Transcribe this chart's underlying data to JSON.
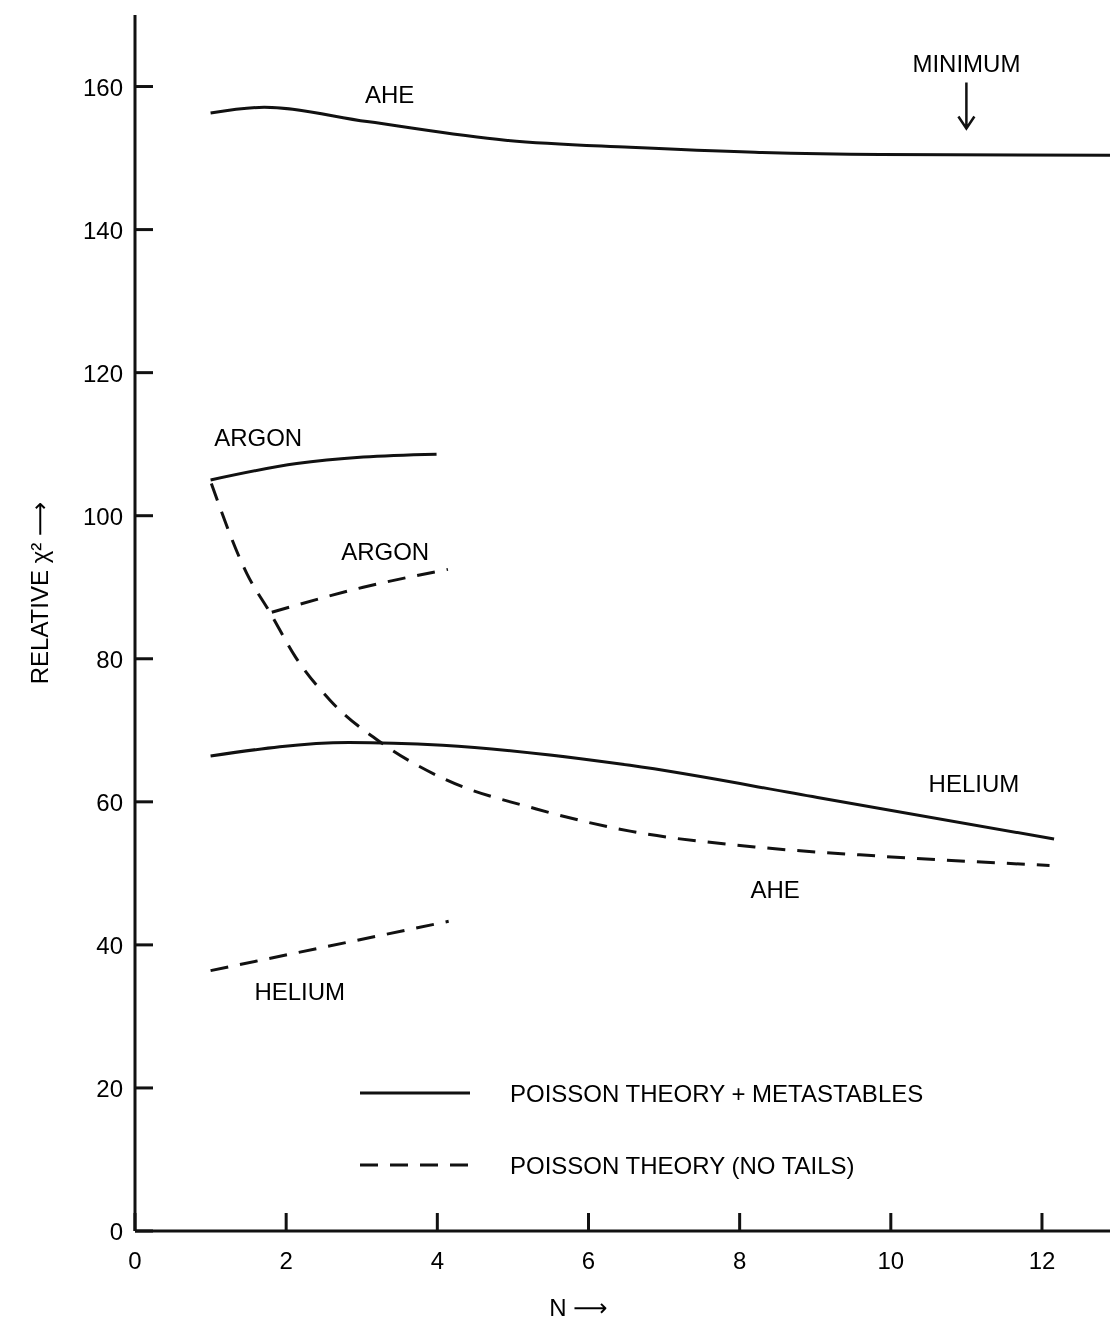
{
  "chart_data": {
    "type": "line",
    "xlabel": "N ⟶",
    "ylabel": "RELATIVE χ² ⟶",
    "xlim": [
      0,
      12.9
    ],
    "ylim": [
      0,
      170
    ],
    "xticks": [
      0,
      2,
      4,
      6,
      8,
      10,
      12
    ],
    "yticks": [
      0,
      20,
      40,
      60,
      80,
      100,
      120,
      140,
      160
    ],
    "grid": false,
    "legend": "bottom",
    "series": [
      {
        "name": "POISSON THEORY + METASTABLES",
        "color": "#111111",
        "line_style": "solid",
        "x": [
          1,
          1.71,
          3.07,
          4.9,
          6.55,
          8.2,
          9.86,
          12.9,
          null,
          1,
          2.14,
          3.02,
          3.99,
          null,
          1,
          2.83,
          4.07,
          6.55,
          9.03,
          12.16
        ],
        "values": [
          156.3,
          157.1,
          155.1,
          152.5,
          151.5,
          150.8,
          150.5,
          150.4,
          null,
          105,
          107.3,
          108.2,
          108.6,
          null,
          66.4,
          68.3,
          67.9,
          65.1,
          60.6,
          54.8
        ]
      },
      {
        "name": "POISSON THEORY (NO TAILS)",
        "color": "#111111",
        "line_style": "dashed",
        "x": [
          1.01,
          1.48,
          1.79,
          2.12,
          2.58,
          3.28,
          4.07,
          5.31,
          6.55,
          8.2,
          9.86,
          12.1,
          null,
          1.81,
          3.02,
          4.14,
          null,
          1,
          4.15
        ],
        "values": [
          104.5,
          91.9,
          86.4,
          80.3,
          74.2,
          68.1,
          63.3,
          59,
          55.9,
          53.7,
          52.4,
          51.1,
          null,
          86.5,
          90,
          92.5,
          null,
          36.4,
          43.3
        ]
      }
    ],
    "annotations": [
      "AHE",
      "ARGON",
      "ARGON",
      "HELIUM",
      "AHE",
      "HELIUM",
      "MINIMUM"
    ]
  }
}
